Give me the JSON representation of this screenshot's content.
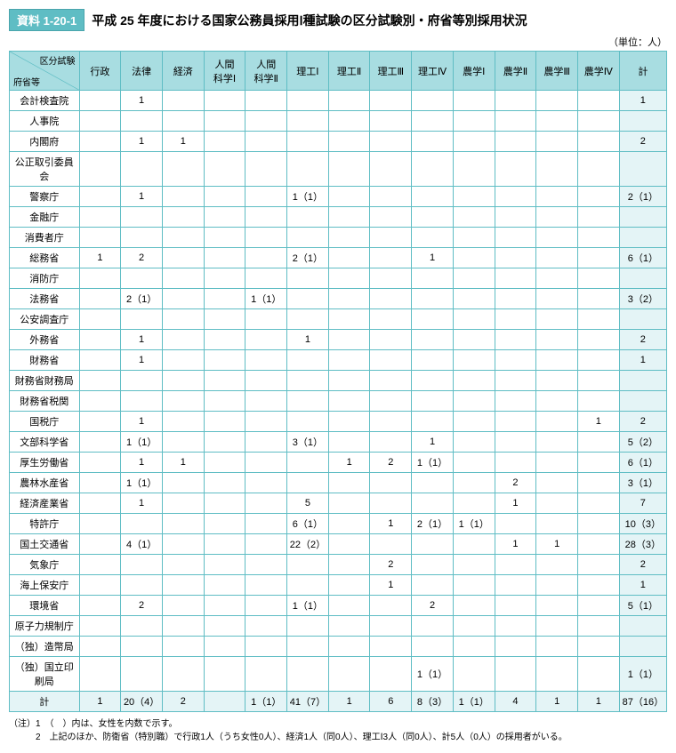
{
  "tag": "資料 1-20-1",
  "title": "平成 25 年度における国家公務員採用Ⅰ種試験の区分試験別・府省等別採用状況",
  "unit": "（単位：人）",
  "diag_top": "区分試験",
  "diag_bot": "府省等",
  "columns": [
    "行政",
    "法律",
    "経済",
    "人間\n科学Ⅰ",
    "人間\n科学Ⅱ",
    "理工Ⅰ",
    "理工Ⅱ",
    "理工Ⅲ",
    "理工Ⅳ",
    "農学Ⅰ",
    "農学Ⅱ",
    "農学Ⅲ",
    "農学Ⅳ",
    "計"
  ],
  "rows": [
    {
      "h": "会計検査院",
      "c": [
        "",
        "1",
        "",
        "",
        "",
        "",
        "",
        "",
        "",
        "",
        "",
        "",
        "",
        "1"
      ]
    },
    {
      "h": "人事院",
      "c": [
        "",
        "",
        "",
        "",
        "",
        "",
        "",
        "",
        "",
        "",
        "",
        "",
        "",
        ""
      ]
    },
    {
      "h": "内閣府",
      "c": [
        "",
        "1",
        "1",
        "",
        "",
        "",
        "",
        "",
        "",
        "",
        "",
        "",
        "",
        "2"
      ]
    },
    {
      "h": "公正取引委員会",
      "c": [
        "",
        "",
        "",
        "",
        "",
        "",
        "",
        "",
        "",
        "",
        "",
        "",
        "",
        ""
      ]
    },
    {
      "h": "警察庁",
      "c": [
        "",
        "1",
        "",
        "",
        "",
        "1（1）",
        "",
        "",
        "",
        "",
        "",
        "",
        "",
        "2（1）"
      ]
    },
    {
      "h": "金融庁",
      "c": [
        "",
        "",
        "",
        "",
        "",
        "",
        "",
        "",
        "",
        "",
        "",
        "",
        "",
        ""
      ]
    },
    {
      "h": "消費者庁",
      "c": [
        "",
        "",
        "",
        "",
        "",
        "",
        "",
        "",
        "",
        "",
        "",
        "",
        "",
        ""
      ]
    },
    {
      "h": "総務省",
      "c": [
        "1",
        "2",
        "",
        "",
        "",
        "2（1）",
        "",
        "",
        "1",
        "",
        "",
        "",
        "",
        "6（1）"
      ]
    },
    {
      "h": "消防庁",
      "c": [
        "",
        "",
        "",
        "",
        "",
        "",
        "",
        "",
        "",
        "",
        "",
        "",
        "",
        ""
      ]
    },
    {
      "h": "法務省",
      "c": [
        "",
        "2（1）",
        "",
        "",
        "1（1）",
        "",
        "",
        "",
        "",
        "",
        "",
        "",
        "",
        "3（2）"
      ]
    },
    {
      "h": "公安調査庁",
      "c": [
        "",
        "",
        "",
        "",
        "",
        "",
        "",
        "",
        "",
        "",
        "",
        "",
        "",
        ""
      ]
    },
    {
      "h": "外務省",
      "c": [
        "",
        "1",
        "",
        "",
        "",
        "1",
        "",
        "",
        "",
        "",
        "",
        "",
        "",
        "2"
      ]
    },
    {
      "h": "財務省",
      "c": [
        "",
        "1",
        "",
        "",
        "",
        "",
        "",
        "",
        "",
        "",
        "",
        "",
        "",
        "1"
      ]
    },
    {
      "h": "財務省財務局",
      "c": [
        "",
        "",
        "",
        "",
        "",
        "",
        "",
        "",
        "",
        "",
        "",
        "",
        "",
        ""
      ]
    },
    {
      "h": "財務省税関",
      "c": [
        "",
        "",
        "",
        "",
        "",
        "",
        "",
        "",
        "",
        "",
        "",
        "",
        "",
        ""
      ]
    },
    {
      "h": "国税庁",
      "c": [
        "",
        "1",
        "",
        "",
        "",
        "",
        "",
        "",
        "",
        "",
        "",
        "",
        "1",
        "2"
      ]
    },
    {
      "h": "文部科学省",
      "c": [
        "",
        "1（1）",
        "",
        "",
        "",
        "3（1）",
        "",
        "",
        "1",
        "",
        "",
        "",
        "",
        "5（2）"
      ]
    },
    {
      "h": "厚生労働省",
      "c": [
        "",
        "1",
        "1",
        "",
        "",
        "",
        "1",
        "2",
        "1（1）",
        "",
        "",
        "",
        "",
        "6（1）"
      ]
    },
    {
      "h": "農林水産省",
      "c": [
        "",
        "1（1）",
        "",
        "",
        "",
        "",
        "",
        "",
        "",
        "",
        "2",
        "",
        "",
        "3（1）"
      ]
    },
    {
      "h": "経済産業省",
      "c": [
        "",
        "1",
        "",
        "",
        "",
        "5",
        "",
        "",
        "",
        "",
        "1",
        "",
        "",
        "7"
      ]
    },
    {
      "h": "特許庁",
      "c": [
        "",
        "",
        "",
        "",
        "",
        "6（1）",
        "",
        "1",
        "2（1）",
        "1（1）",
        "",
        "",
        "",
        "10（3）"
      ]
    },
    {
      "h": "国土交通省",
      "c": [
        "",
        "4（1）",
        "",
        "",
        "",
        "22（2）",
        "",
        "",
        "",
        "",
        "1",
        "1",
        "",
        "28（3）"
      ]
    },
    {
      "h": "気象庁",
      "c": [
        "",
        "",
        "",
        "",
        "",
        "",
        "",
        "2",
        "",
        "",
        "",
        "",
        "",
        "2"
      ]
    },
    {
      "h": "海上保安庁",
      "c": [
        "",
        "",
        "",
        "",
        "",
        "",
        "",
        "1",
        "",
        "",
        "",
        "",
        "",
        "1"
      ]
    },
    {
      "h": "環境省",
      "c": [
        "",
        "2",
        "",
        "",
        "",
        "1（1）",
        "",
        "",
        "2",
        "",
        "",
        "",
        "",
        "5（1）"
      ]
    },
    {
      "h": "原子力規制庁",
      "c": [
        "",
        "",
        "",
        "",
        "",
        "",
        "",
        "",
        "",
        "",
        "",
        "",
        "",
        ""
      ]
    },
    {
      "h": "（独）造幣局",
      "c": [
        "",
        "",
        "",
        "",
        "",
        "",
        "",
        "",
        "",
        "",
        "",
        "",
        "",
        ""
      ]
    },
    {
      "h": "（独）国立印刷局",
      "c": [
        "",
        "",
        "",
        "",
        "",
        "",
        "",
        "",
        "1（1）",
        "",
        "",
        "",
        "",
        "1（1）"
      ]
    }
  ],
  "total_label": "計",
  "total": [
    "1",
    "20（4）",
    "2",
    "",
    "1（1）",
    "41（7）",
    "1",
    "6",
    "8（3）",
    "1（1）",
    "4",
    "1",
    "1",
    "87（16）"
  ],
  "notes": [
    "（注）1　（　）内は、女性を内数で示す。",
    "　　　2　上記のほか、防衛省（特別職）で行政1人（うち女性0人）、経済1人（同0人）、理工Ⅰ3人（同0人）、計5人（0人）の採用者がいる。"
  ]
}
